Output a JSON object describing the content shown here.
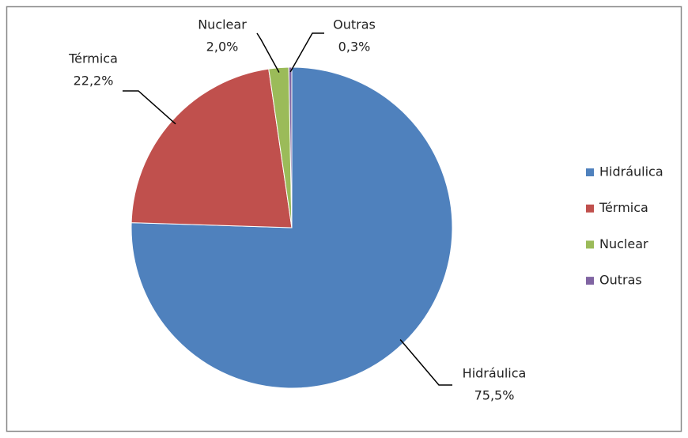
{
  "chart_data": {
    "type": "pie",
    "categories": [
      "Hidráulica",
      "Térmica",
      "Nuclear",
      "Outras"
    ],
    "values": [
      75.5,
      22.2,
      2.0,
      0.3
    ],
    "value_labels": [
      "75,5%",
      "22,2%",
      "2,0%",
      "0,3%"
    ],
    "colors": [
      "#4f81bd",
      "#c0504d",
      "#9bbb59",
      "#8064a2"
    ],
    "legend": "right"
  }
}
